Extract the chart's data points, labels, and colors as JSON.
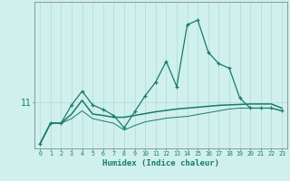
{
  "xlabel": "Humidex (Indice chaleur)",
  "ylabel": "",
  "bg_color": "#cff0ec",
  "line_color": "#1a7a6e",
  "grid_color": "#b8ddd8",
  "x_hours": [
    0,
    1,
    2,
    3,
    4,
    5,
    6,
    7,
    8,
    9,
    10,
    11,
    12,
    13,
    14,
    15,
    16,
    17,
    18,
    19,
    20,
    21,
    22,
    23
  ],
  "y_max": [
    10.1,
    10.55,
    10.55,
    10.95,
    11.25,
    10.95,
    10.85,
    10.72,
    10.45,
    10.8,
    11.15,
    11.45,
    11.9,
    11.35,
    12.7,
    12.8,
    12.1,
    11.85,
    11.75,
    11.1,
    10.88,
    10.88,
    10.88,
    10.82
  ],
  "y_mean": [
    10.1,
    10.55,
    10.55,
    10.75,
    11.05,
    10.75,
    10.72,
    10.68,
    10.68,
    10.72,
    10.76,
    10.8,
    10.83,
    10.86,
    10.88,
    10.9,
    10.92,
    10.94,
    10.95,
    10.96,
    10.97,
    10.97,
    10.97,
    10.88
  ],
  "y_min": [
    10.1,
    10.55,
    10.55,
    10.65,
    10.82,
    10.65,
    10.6,
    10.55,
    10.4,
    10.5,
    10.58,
    10.62,
    10.66,
    10.68,
    10.7,
    10.74,
    10.78,
    10.82,
    10.86,
    10.88,
    10.88,
    10.88,
    10.88,
    10.82
  ],
  "ytick_vals": [
    11
  ],
  "ytick_labels": [
    "11"
  ],
  "xlim": [
    -0.5,
    23.5
  ],
  "ylim": [
    10.0,
    13.2
  ]
}
